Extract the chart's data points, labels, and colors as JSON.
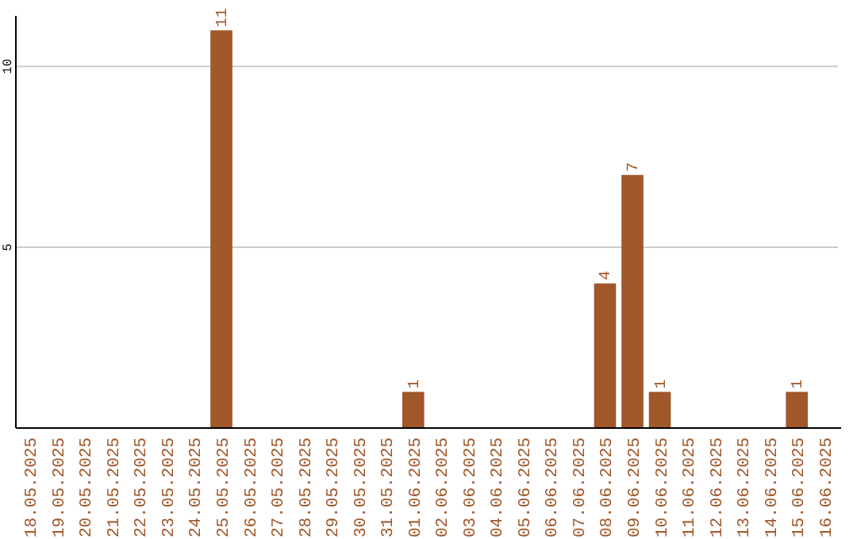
{
  "chart_data": {
    "type": "bar",
    "categories": [
      "18.05.2025",
      "19.05.2025",
      "20.05.2025",
      "21.05.2025",
      "22.05.2025",
      "23.05.2025",
      "24.05.2025",
      "25.05.2025",
      "26.05.2025",
      "27.05.2025",
      "28.05.2025",
      "29.05.2025",
      "30.05.2025",
      "31.05.2025",
      "01.06.2025",
      "02.06.2025",
      "03.06.2025",
      "04.06.2025",
      "05.06.2025",
      "06.06.2025",
      "07.06.2025",
      "08.06.2025",
      "09.06.2025",
      "10.06.2025",
      "11.06.2025",
      "12.06.2025",
      "13.06.2025",
      "14.06.2025",
      "15.06.2025",
      "16.06.2025"
    ],
    "values": [
      0,
      0,
      0,
      0,
      0,
      0,
      0,
      11,
      0,
      0,
      0,
      0,
      0,
      0,
      1,
      0,
      0,
      0,
      0,
      0,
      0,
      4,
      7,
      1,
      0,
      0,
      0,
      0,
      1,
      0
    ],
    "value_labels": [
      null,
      null,
      null,
      null,
      null,
      null,
      null,
      "11",
      null,
      null,
      null,
      null,
      null,
      null,
      "1",
      null,
      null,
      null,
      null,
      null,
      null,
      "4",
      "7",
      "1",
      null,
      null,
      null,
      null,
      "1",
      null
    ],
    "color": "#a0572a",
    "ylim": [
      0,
      11.4
    ],
    "yticks": [
      5,
      10
    ],
    "grid": "y"
  }
}
